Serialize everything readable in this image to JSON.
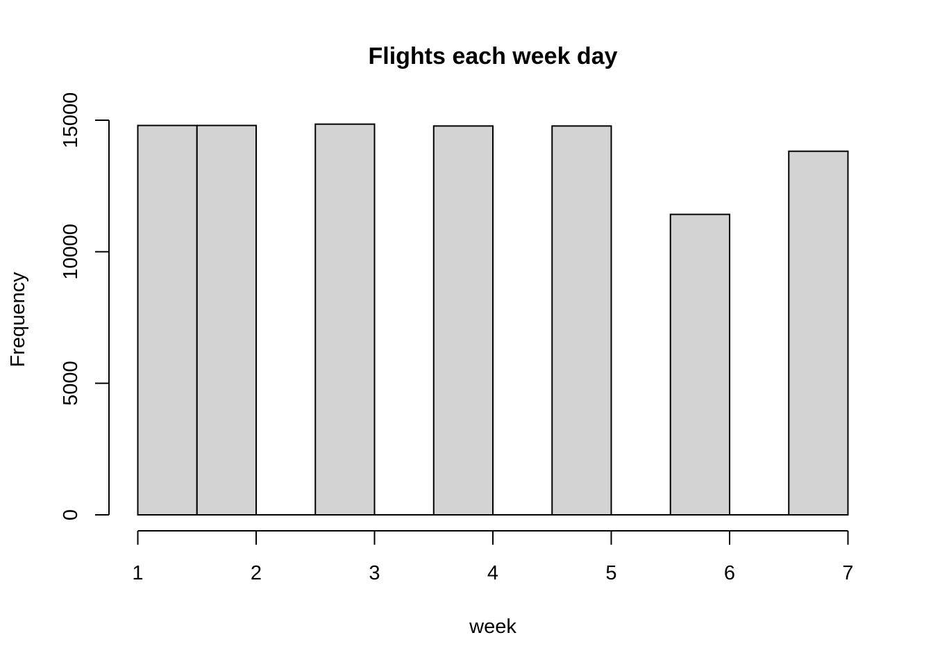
{
  "chart_data": {
    "type": "bar",
    "title": "Flights each week day",
    "xlabel": "week",
    "ylabel": "Frequency",
    "bins": [
      {
        "start": 1.0,
        "end": 1.5,
        "value": 14800
      },
      {
        "start": 1.5,
        "end": 2.0,
        "value": 14800
      },
      {
        "start": 2.0,
        "end": 2.5,
        "value": 0
      },
      {
        "start": 2.5,
        "end": 3.0,
        "value": 14850
      },
      {
        "start": 3.0,
        "end": 3.5,
        "value": 0
      },
      {
        "start": 3.5,
        "end": 4.0,
        "value": 14780
      },
      {
        "start": 4.0,
        "end": 4.5,
        "value": 0
      },
      {
        "start": 4.5,
        "end": 5.0,
        "value": 14780
      },
      {
        "start": 5.0,
        "end": 5.5,
        "value": 0
      },
      {
        "start": 5.5,
        "end": 6.0,
        "value": 11420
      },
      {
        "start": 6.0,
        "end": 6.5,
        "value": 0
      },
      {
        "start": 6.5,
        "end": 7.0,
        "value": 13820
      }
    ],
    "xlim": [
      1,
      7
    ],
    "ylim": [
      0,
      15000
    ],
    "x_ticks": [
      "1",
      "2",
      "3",
      "4",
      "5",
      "6",
      "7"
    ],
    "y_ticks": [
      "0",
      "5000",
      "10000",
      "15000"
    ],
    "grid": false,
    "bar_color": "#d3d3d3",
    "edge_color": "#000000"
  }
}
